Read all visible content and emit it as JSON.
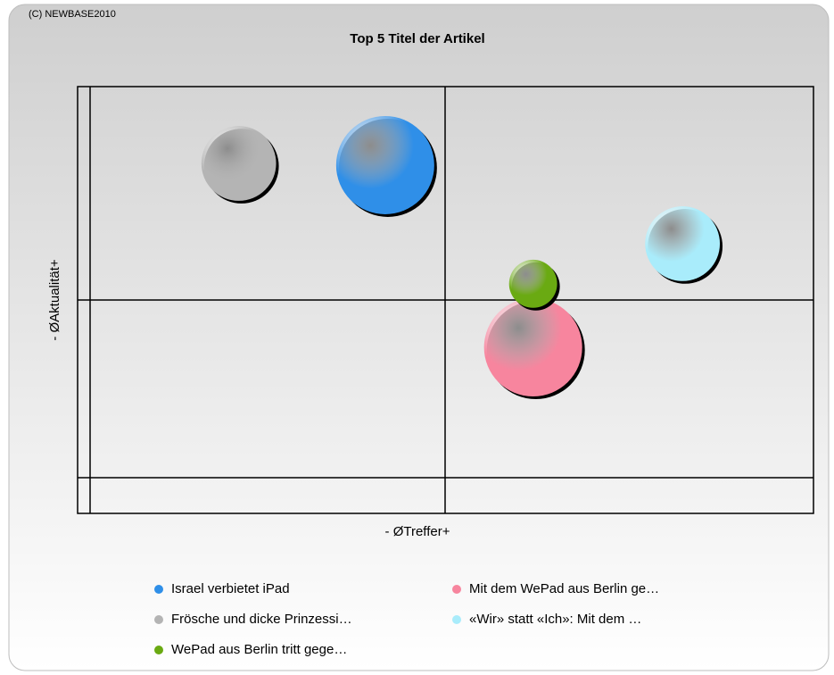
{
  "chart_data": {
    "type": "bubble",
    "copyright": "(C) NEWBASE2010",
    "title": "Top 5 Titel der Artikel",
    "x_label": "- ØTreffer+",
    "y_label": "- ØAktualität+",
    "xlim": [
      0,
      100
    ],
    "ylim": [
      0,
      100
    ],
    "series": [
      {
        "name": "Israel verbietet iPad",
        "color": "#2f8fe8",
        "x": [
          41.8
        ],
        "values": [
          81.6
        ],
        "size": [
          100
        ]
      },
      {
        "name": "Mit dem WePad aus Berlin ge…",
        "color": "#f7859e",
        "x": [
          61.9
        ],
        "values": [
          38.9
        ],
        "size": [
          100
        ]
      },
      {
        "name": "Frösche und dicke Prinzessi…",
        "color": "#b4b4b4",
        "x": [
          21.9
        ],
        "values": [
          82.0
        ],
        "size": [
          58
        ]
      },
      {
        "name": "«Wir» statt «Ich»: Mit dem …",
        "color": "#a9ecfb",
        "x": [
          82.2
        ],
        "values": [
          63.2
        ],
        "size": [
          58
        ]
      },
      {
        "name": "WePad aus Berlin tritt gege…",
        "color": "#6aaa12",
        "x": [
          61.9
        ],
        "values": [
          53.8
        ],
        "size": [
          24
        ]
      }
    ]
  }
}
